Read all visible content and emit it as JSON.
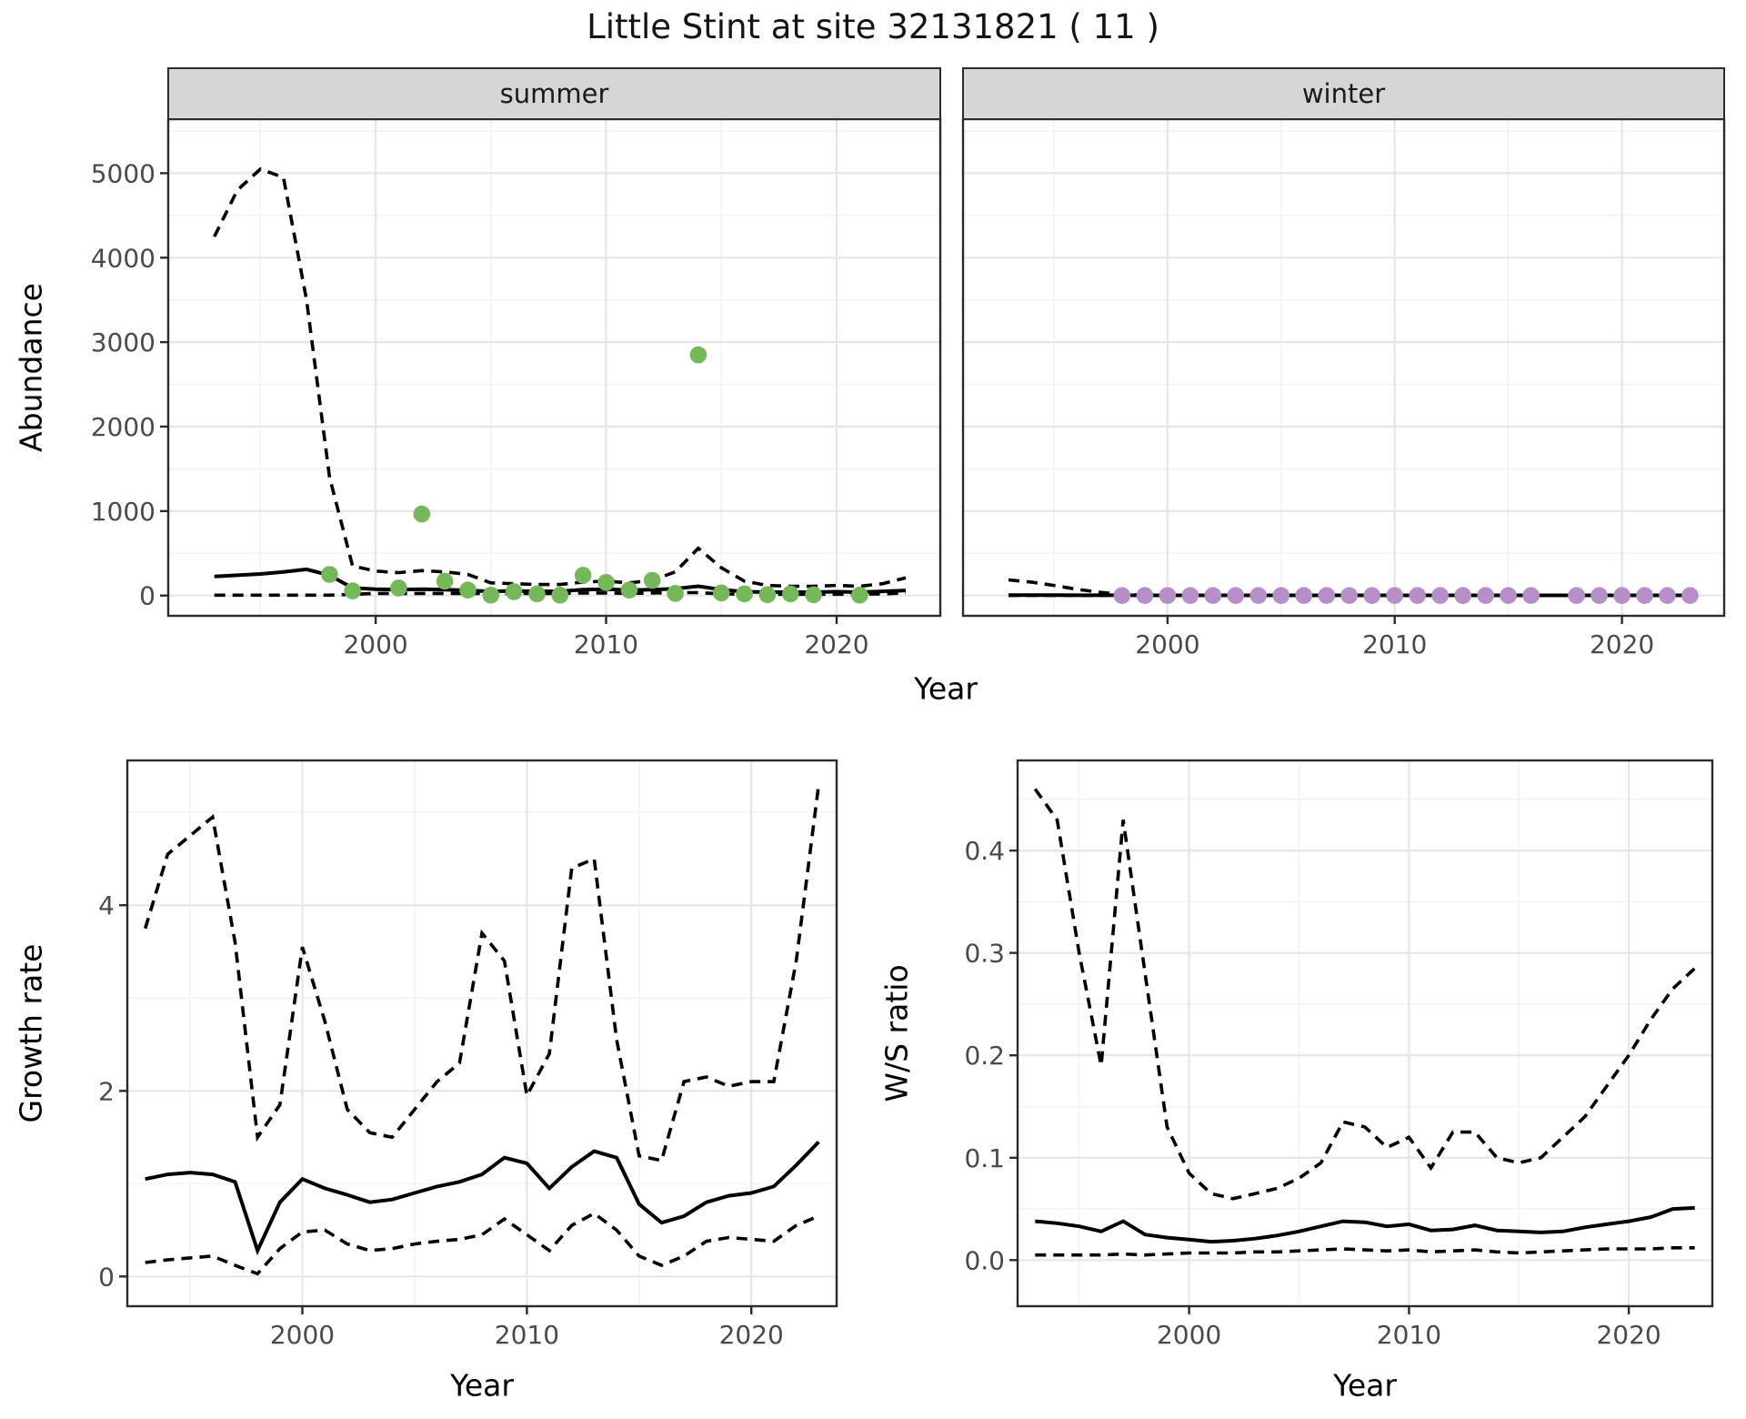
{
  "title": "Little Stint at site 32131821 ( 11 )",
  "axis_titles": {
    "x": "Year",
    "y_top": "Abundance",
    "y_growth": "Growth rate",
    "y_ws": "W/S ratio"
  },
  "colors": {
    "summer_point": "#75b85a",
    "winter_point": "#b68fc9",
    "line": "#000000",
    "strip_bg": "#d6d6d6",
    "panel_border": "#2b2b2b",
    "grid_major": "#e6e6e6",
    "grid_minor": "#f3f3f3",
    "tick_label": "#4a4a4a"
  },
  "chart_data": [
    {
      "id": "abundance-summer",
      "type": "line",
      "facet_label": "summer",
      "xlabel": "Year",
      "ylabel": "Abundance",
      "xlim": [
        1991.0,
        2024.5
      ],
      "ylim": [
        -240,
        5640
      ],
      "x_ticks": [
        2000,
        2010,
        2020
      ],
      "x_tick_labels": [
        "2000",
        "2010",
        "2020"
      ],
      "x_minor": [
        1995,
        2005,
        2015
      ],
      "y_ticks": [
        0,
        1000,
        2000,
        3000,
        4000,
        5000
      ],
      "y_tick_labels": [
        "0",
        "1000",
        "2000",
        "3000",
        "4000",
        "5000"
      ],
      "y_minor": [
        500,
        1500,
        2500,
        3500,
        4500,
        5500
      ],
      "years": [
        1993,
        1994,
        1995,
        1996,
        1997,
        1998,
        1999,
        2000,
        2001,
        2002,
        2003,
        2004,
        2005,
        2006,
        2007,
        2008,
        2009,
        2010,
        2011,
        2012,
        2013,
        2014,
        2015,
        2016,
        2017,
        2018,
        2019,
        2020,
        2021,
        2022,
        2023
      ],
      "series": [
        {
          "name": "upper_ci",
          "style": "dashed",
          "values": [
            4250,
            4800,
            5050,
            4950,
            3500,
            1400,
            350,
            290,
            270,
            295,
            280,
            250,
            150,
            140,
            130,
            130,
            160,
            170,
            150,
            180,
            280,
            560,
            330,
            170,
            120,
            110,
            110,
            120,
            110,
            140,
            210
          ]
        },
        {
          "name": "median",
          "style": "solid",
          "values": [
            225,
            240,
            255,
            280,
            310,
            240,
            90,
            75,
            70,
            75,
            70,
            60,
            50,
            55,
            50,
            50,
            70,
            75,
            65,
            70,
            80,
            110,
            70,
            45,
            40,
            40,
            40,
            45,
            40,
            50,
            60
          ]
        },
        {
          "name": "lower_ci",
          "style": "dashed",
          "values": [
            5,
            5,
            5,
            5,
            5,
            5,
            15,
            25,
            25,
            25,
            25,
            25,
            25,
            25,
            25,
            25,
            30,
            30,
            25,
            30,
            35,
            35,
            20,
            15,
            15,
            15,
            15,
            15,
            15,
            20,
            30
          ]
        }
      ],
      "points": {
        "name": "summer-observations",
        "color": "#75b85a",
        "data": [
          [
            1998,
            250
          ],
          [
            1999,
            55
          ],
          [
            2001,
            90
          ],
          [
            2002,
            965
          ],
          [
            2003,
            170
          ],
          [
            2004,
            65
          ],
          [
            2005,
            5
          ],
          [
            2006,
            45
          ],
          [
            2007,
            20
          ],
          [
            2008,
            5
          ],
          [
            2009,
            240
          ],
          [
            2010,
            155
          ],
          [
            2011,
            65
          ],
          [
            2012,
            180
          ],
          [
            2013,
            25
          ],
          [
            2014,
            2850
          ],
          [
            2015,
            30
          ],
          [
            2016,
            20
          ],
          [
            2017,
            10
          ],
          [
            2018,
            20
          ],
          [
            2019,
            10
          ],
          [
            2021,
            5
          ]
        ]
      }
    },
    {
      "id": "abundance-winter",
      "type": "line",
      "facet_label": "winter",
      "xlabel": "Year",
      "ylabel": "Abundance",
      "xlim": [
        1991.0,
        2024.5
      ],
      "ylim": [
        -240,
        5640
      ],
      "x_ticks": [
        2000,
        2010,
        2020
      ],
      "x_tick_labels": [
        "2000",
        "2010",
        "2020"
      ],
      "x_minor": [
        1995,
        2005,
        2015
      ],
      "y_ticks": [
        0,
        1000,
        2000,
        3000,
        4000,
        5000
      ],
      "y_tick_labels": [
        "0",
        "1000",
        "2000",
        "3000",
        "4000",
        "5000"
      ],
      "y_minor": [
        500,
        1500,
        2500,
        3500,
        4500,
        5500
      ],
      "years": [
        1993,
        1994,
        1995,
        1996,
        1997,
        1998,
        1999,
        2000,
        2001,
        2002,
        2003,
        2004,
        2005,
        2006,
        2007,
        2008,
        2009,
        2010,
        2011,
        2012,
        2013,
        2014,
        2015,
        2016,
        2017,
        2018,
        2019,
        2020,
        2021,
        2022,
        2023
      ],
      "series": [
        {
          "name": "upper_ci",
          "style": "dashed",
          "values": [
            185,
            160,
            120,
            75,
            40,
            12,
            6,
            5,
            5,
            5,
            5,
            5,
            5,
            5,
            5,
            5,
            5,
            5,
            5,
            5,
            5,
            5,
            5,
            5,
            5,
            5,
            5,
            5,
            5,
            5,
            5
          ]
        },
        {
          "name": "median",
          "style": "solid",
          "values": [
            4,
            4,
            4,
            3,
            3,
            3,
            2,
            2,
            2,
            2,
            2,
            2,
            2,
            2,
            2,
            2,
            2,
            2,
            2,
            2,
            2,
            2,
            2,
            2,
            2,
            2,
            2,
            2,
            2,
            2,
            2
          ]
        },
        {
          "name": "lower_ci",
          "style": "dashed",
          "values": [
            1,
            1,
            1,
            1,
            1,
            1,
            1,
            1,
            1,
            1,
            1,
            1,
            1,
            1,
            1,
            1,
            1,
            1,
            1,
            1,
            1,
            1,
            1,
            1,
            1,
            1,
            1,
            1,
            1,
            1,
            1
          ]
        }
      ],
      "points": {
        "name": "winter-observations",
        "color": "#b68fc9",
        "data": [
          [
            1998,
            0
          ],
          [
            1999,
            0
          ],
          [
            2000,
            0
          ],
          [
            2001,
            0
          ],
          [
            2002,
            0
          ],
          [
            2003,
            0
          ],
          [
            2004,
            0
          ],
          [
            2005,
            0
          ],
          [
            2006,
            0
          ],
          [
            2007,
            0
          ],
          [
            2008,
            0
          ],
          [
            2009,
            0
          ],
          [
            2010,
            0
          ],
          [
            2011,
            0
          ],
          [
            2012,
            0
          ],
          [
            2013,
            0
          ],
          [
            2014,
            0
          ],
          [
            2015,
            0
          ],
          [
            2016,
            0
          ],
          [
            2018,
            0
          ],
          [
            2019,
            0
          ],
          [
            2020,
            0
          ],
          [
            2021,
            0
          ],
          [
            2022,
            0
          ],
          [
            2023,
            0
          ]
        ]
      }
    },
    {
      "id": "growth-rate",
      "type": "line",
      "facet_label": null,
      "xlabel": "Year",
      "ylabel": "Growth rate",
      "xlim": [
        1992.2,
        2023.8
      ],
      "ylim": [
        -0.32,
        5.56
      ],
      "x_ticks": [
        2000,
        2010,
        2020
      ],
      "x_tick_labels": [
        "2000",
        "2010",
        "2020"
      ],
      "x_minor": [
        1995,
        2005,
        2015
      ],
      "y_ticks": [
        0,
        2,
        4
      ],
      "y_tick_labels": [
        "0",
        "2",
        "4"
      ],
      "y_minor": [
        1,
        3,
        5
      ],
      "years": [
        1993,
        1994,
        1995,
        1996,
        1997,
        1998,
        1999,
        2000,
        2001,
        2002,
        2003,
        2004,
        2005,
        2006,
        2007,
        2008,
        2009,
        2010,
        2011,
        2012,
        2013,
        2014,
        2015,
        2016,
        2017,
        2018,
        2019,
        2020,
        2021,
        2022,
        2023
      ],
      "series": [
        {
          "name": "upper_ci",
          "style": "dashed",
          "values": [
            3.75,
            4.55,
            4.75,
            4.95,
            3.6,
            1.5,
            1.85,
            3.55,
            2.75,
            1.8,
            1.55,
            1.5,
            1.8,
            2.1,
            2.3,
            3.7,
            3.4,
            1.95,
            2.4,
            4.4,
            4.5,
            2.55,
            1.3,
            1.25,
            2.1,
            2.15,
            2.05,
            2.1,
            2.1,
            3.4,
            5.3
          ]
        },
        {
          "name": "median",
          "style": "solid",
          "values": [
            1.05,
            1.1,
            1.12,
            1.1,
            1.02,
            0.28,
            0.8,
            1.05,
            0.95,
            0.88,
            0.8,
            0.83,
            0.9,
            0.97,
            1.02,
            1.1,
            1.28,
            1.22,
            0.95,
            1.18,
            1.35,
            1.28,
            0.78,
            0.58,
            0.65,
            0.8,
            0.87,
            0.9,
            0.97,
            1.2,
            1.45
          ]
        },
        {
          "name": "lower_ci",
          "style": "dashed",
          "values": [
            0.15,
            0.18,
            0.2,
            0.22,
            0.12,
            0.03,
            0.3,
            0.48,
            0.5,
            0.35,
            0.28,
            0.3,
            0.35,
            0.38,
            0.4,
            0.45,
            0.62,
            0.45,
            0.28,
            0.55,
            0.68,
            0.5,
            0.22,
            0.12,
            0.22,
            0.38,
            0.42,
            0.4,
            0.38,
            0.55,
            0.65
          ]
        }
      ],
      "points": null
    },
    {
      "id": "ws-ratio",
      "type": "line",
      "facet_label": null,
      "xlabel": "Year",
      "ylabel": "W/S ratio",
      "xlim": [
        1992.2,
        2023.8
      ],
      "ylim": [
        -0.045,
        0.488
      ],
      "x_ticks": [
        2000,
        2010,
        2020
      ],
      "x_tick_labels": [
        "2000",
        "2010",
        "2020"
      ],
      "x_minor": [
        1995,
        2005,
        2015
      ],
      "y_ticks": [
        0.0,
        0.1,
        0.2,
        0.3,
        0.4
      ],
      "y_tick_labels": [
        "0.0",
        "0.1",
        "0.2",
        "0.3",
        "0.4"
      ],
      "y_minor": [
        0.05,
        0.15,
        0.25,
        0.35,
        0.45
      ],
      "years": [
        1993,
        1994,
        1995,
        1996,
        1997,
        1998,
        1999,
        2000,
        2001,
        2002,
        2003,
        2004,
        2005,
        2006,
        2007,
        2008,
        2009,
        2010,
        2011,
        2012,
        2013,
        2014,
        2015,
        2016,
        2017,
        2018,
        2019,
        2020,
        2021,
        2022,
        2023
      ],
      "series": [
        {
          "name": "upper_ci",
          "style": "dashed",
          "values": [
            0.46,
            0.43,
            0.3,
            0.19,
            0.43,
            0.28,
            0.13,
            0.085,
            0.065,
            0.06,
            0.065,
            0.07,
            0.08,
            0.095,
            0.135,
            0.13,
            0.11,
            0.12,
            0.09,
            0.125,
            0.125,
            0.1,
            0.095,
            0.1,
            0.12,
            0.14,
            0.17,
            0.2,
            0.235,
            0.265,
            0.285
          ]
        },
        {
          "name": "median",
          "style": "solid",
          "values": [
            0.038,
            0.036,
            0.033,
            0.028,
            0.038,
            0.025,
            0.022,
            0.02,
            0.018,
            0.019,
            0.021,
            0.024,
            0.028,
            0.033,
            0.038,
            0.037,
            0.033,
            0.035,
            0.029,
            0.03,
            0.034,
            0.029,
            0.028,
            0.027,
            0.028,
            0.032,
            0.035,
            0.038,
            0.042,
            0.05,
            0.051
          ]
        },
        {
          "name": "lower_ci",
          "style": "dashed",
          "values": [
            0.005,
            0.005,
            0.005,
            0.005,
            0.006,
            0.005,
            0.006,
            0.007,
            0.007,
            0.007,
            0.008,
            0.008,
            0.009,
            0.01,
            0.011,
            0.01,
            0.009,
            0.01,
            0.008,
            0.009,
            0.01,
            0.008,
            0.007,
            0.008,
            0.009,
            0.01,
            0.011,
            0.011,
            0.011,
            0.012,
            0.012
          ]
        }
      ],
      "points": null
    }
  ]
}
